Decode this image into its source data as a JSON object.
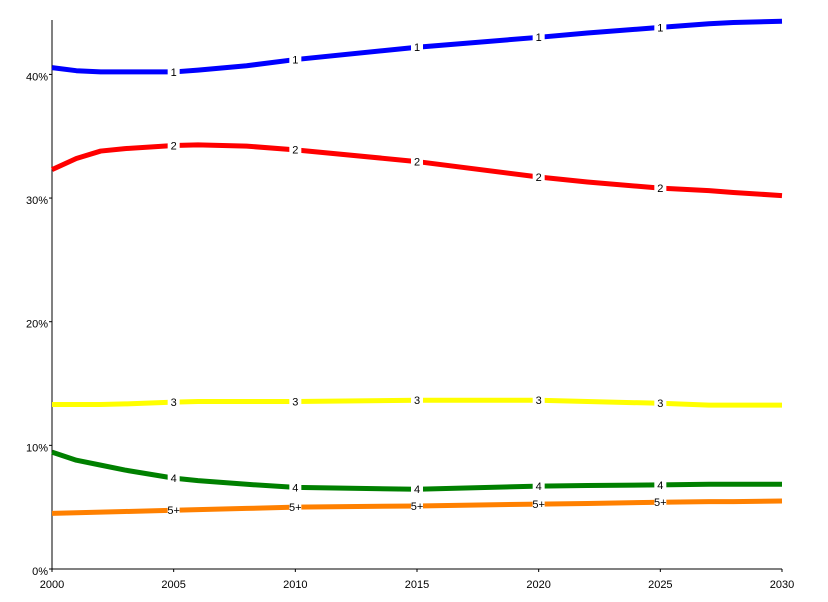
{
  "chart_data": {
    "type": "line",
    "x": [
      2000,
      2001,
      2002,
      2003,
      2005,
      2006,
      2008,
      2010,
      2015,
      2020,
      2022,
      2025,
      2027,
      2028,
      2030
    ],
    "series": [
      {
        "name": "1",
        "color": "#0000ff",
        "values": [
          40.55,
          40.3,
          40.2,
          40.2,
          40.2,
          40.35,
          40.7,
          41.2,
          42.2,
          43.0,
          43.35,
          43.8,
          44.1,
          44.2,
          44.3
        ]
      },
      {
        "name": "2",
        "color": "#ff0000",
        "values": [
          32.3,
          33.2,
          33.8,
          34.0,
          34.25,
          34.3,
          34.2,
          33.9,
          32.95,
          31.7,
          31.3,
          30.8,
          30.6,
          30.45,
          30.2
        ]
      },
      {
        "name": "3",
        "color": "#ffff00",
        "values": [
          13.3,
          13.3,
          13.3,
          13.35,
          13.5,
          13.55,
          13.55,
          13.55,
          13.65,
          13.65,
          13.55,
          13.4,
          13.25,
          13.25,
          13.25
        ]
      },
      {
        "name": "4",
        "color": "#008000",
        "values": [
          9.45,
          8.8,
          8.4,
          8.0,
          7.35,
          7.15,
          6.85,
          6.6,
          6.45,
          6.7,
          6.75,
          6.8,
          6.85,
          6.85,
          6.85
        ]
      },
      {
        "name": "5+",
        "color": "#ff8000",
        "values": [
          4.5,
          4.55,
          4.6,
          4.65,
          4.75,
          4.8,
          4.9,
          5.0,
          5.1,
          5.25,
          5.3,
          5.4,
          5.45,
          5.45,
          5.5
        ]
      }
    ],
    "xlim": [
      2000,
      2030
    ],
    "xticks": [
      2000,
      2005,
      2010,
      2015,
      2020,
      2025,
      2030
    ],
    "ylim": [
      0,
      44.4
    ],
    "yticks": [
      {
        "value": 0,
        "label": "0%"
      },
      {
        "value": 10,
        "label": "10%"
      },
      {
        "value": 20,
        "label": "20%"
      },
      {
        "value": 30,
        "label": "30%"
      },
      {
        "value": 40,
        "label": "40%"
      }
    ],
    "grid": false
  }
}
